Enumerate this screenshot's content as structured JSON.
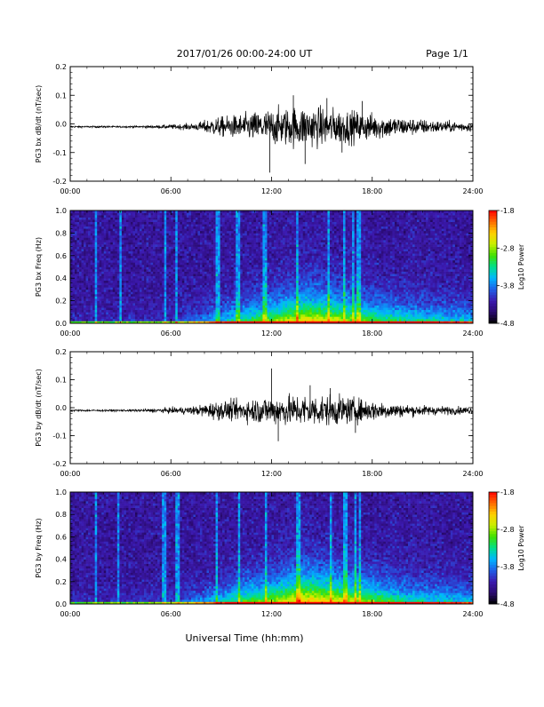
{
  "header": {
    "title": "2017/01/26  00:00-24:00 UT",
    "page": "Page 1/1"
  },
  "xlabel": "Universal Time (hh:mm)",
  "x_ticks": [
    "00:00",
    "06:00",
    "12:00",
    "18:00",
    "24:00"
  ],
  "x_range_hours": [
    0,
    24
  ],
  "colorbar": {
    "label": "Log10 Power",
    "ticks": [
      "-1.8",
      "-2.8",
      "-3.8",
      "-4.8"
    ],
    "range": [
      -4.8,
      -1.8
    ],
    "colors": [
      "#000000",
      "#2a0a70",
      "#3c1ab0",
      "#1f5fe8",
      "#00b7ff",
      "#00e08a",
      "#40e000",
      "#c8f000",
      "#ffd000",
      "#ff6a00",
      "#ff0000"
    ]
  },
  "chart_data": [
    {
      "type": "line",
      "name": "bx-dbdt",
      "ylabel": "PG3 bx dB/dt (nT/sec)",
      "ylim": [
        -0.2,
        0.2
      ],
      "y_ticks": [
        "0.2",
        "0.1",
        "0.0",
        "-0.1",
        "-0.2"
      ],
      "baseline": -0.01,
      "amplitude_envelope": [
        {
          "t": 0,
          "a": 0.003
        },
        {
          "t": 4,
          "a": 0.003
        },
        {
          "t": 5.5,
          "a": 0.006
        },
        {
          "t": 7.5,
          "a": 0.012
        },
        {
          "t": 8.5,
          "a": 0.03
        },
        {
          "t": 10,
          "a": 0.04
        },
        {
          "t": 12,
          "a": 0.06
        },
        {
          "t": 14,
          "a": 0.07
        },
        {
          "t": 16,
          "a": 0.06
        },
        {
          "t": 18,
          "a": 0.045
        },
        {
          "t": 20,
          "a": 0.03
        },
        {
          "t": 22,
          "a": 0.02
        },
        {
          "t": 24,
          "a": 0.015
        }
      ],
      "spikes": [
        {
          "t": 11.9,
          "y": -0.17
        },
        {
          "t": 13.3,
          "y": 0.1
        },
        {
          "t": 14.0,
          "y": -0.14
        },
        {
          "t": 15.3,
          "y": 0.09
        },
        {
          "t": 16.2,
          "y": -0.1
        },
        {
          "t": 17.4,
          "y": 0.08
        }
      ]
    },
    {
      "type": "heatmap",
      "name": "bx-spectrogram",
      "ylabel": "PG3 bx Freq (Hz)",
      "ylim": [
        0,
        1
      ],
      "y_ticks": [
        "1.0",
        "0.8",
        "0.6",
        "0.4",
        "0.2",
        "0.0"
      ],
      "activity_envelope": [
        {
          "t": 0,
          "a": 0.05
        },
        {
          "t": 6,
          "a": 0.1
        },
        {
          "t": 8,
          "a": 0.25
        },
        {
          "t": 10,
          "a": 0.45
        },
        {
          "t": 12,
          "a": 0.6
        },
        {
          "t": 14,
          "a": 0.8
        },
        {
          "t": 16,
          "a": 0.7
        },
        {
          "t": 18,
          "a": 0.55
        },
        {
          "t": 20,
          "a": 0.45
        },
        {
          "t": 22,
          "a": 0.4
        },
        {
          "t": 24,
          "a": 0.35
        }
      ],
      "streaks_hours": [
        1.5,
        3.0,
        5.7,
        6.3,
        8.8,
        10.0,
        11.6,
        13.5,
        15.4,
        16.3,
        16.9,
        17.2
      ]
    },
    {
      "type": "line",
      "name": "by-dbdt",
      "ylabel": "PG3 by dB/dt (nT/sec)",
      "ylim": [
        -0.2,
        0.2
      ],
      "y_ticks": [
        "0.2",
        "0.1",
        "0.0",
        "-0.1",
        "-0.2"
      ],
      "baseline": -0.01,
      "amplitude_envelope": [
        {
          "t": 0,
          "a": 0.003
        },
        {
          "t": 4,
          "a": 0.004
        },
        {
          "t": 5.5,
          "a": 0.008
        },
        {
          "t": 7.5,
          "a": 0.015
        },
        {
          "t": 8.5,
          "a": 0.03
        },
        {
          "t": 10,
          "a": 0.035
        },
        {
          "t": 12,
          "a": 0.05
        },
        {
          "t": 14,
          "a": 0.055
        },
        {
          "t": 16,
          "a": 0.05
        },
        {
          "t": 18,
          "a": 0.035
        },
        {
          "t": 20,
          "a": 0.02
        },
        {
          "t": 22,
          "a": 0.015
        },
        {
          "t": 24,
          "a": 0.012
        }
      ],
      "spikes": [
        {
          "t": 12.0,
          "y": 0.14
        },
        {
          "t": 12.4,
          "y": -0.12
        },
        {
          "t": 14.3,
          "y": 0.08
        },
        {
          "t": 15.5,
          "y": 0.07
        },
        {
          "t": 17.0,
          "y": -0.09
        }
      ]
    },
    {
      "type": "heatmap",
      "name": "by-spectrogram",
      "ylabel": "PG3 by Freq (Hz)",
      "ylim": [
        0,
        1
      ],
      "y_ticks": [
        "1.0",
        "0.8",
        "0.6",
        "0.4",
        "0.2",
        "0.0"
      ],
      "activity_envelope": [
        {
          "t": 0,
          "a": 0.05
        },
        {
          "t": 6,
          "a": 0.12
        },
        {
          "t": 8,
          "a": 0.28
        },
        {
          "t": 10,
          "a": 0.5
        },
        {
          "t": 12,
          "a": 0.65
        },
        {
          "t": 14,
          "a": 0.85
        },
        {
          "t": 16,
          "a": 0.75
        },
        {
          "t": 18,
          "a": 0.6
        },
        {
          "t": 20,
          "a": 0.45
        },
        {
          "t": 22,
          "a": 0.4
        },
        {
          "t": 24,
          "a": 0.35
        }
      ],
      "streaks_hours": [
        1.5,
        2.9,
        5.6,
        6.4,
        8.7,
        10.1,
        11.7,
        13.6,
        15.5,
        16.4,
        17.0,
        17.3
      ]
    }
  ]
}
